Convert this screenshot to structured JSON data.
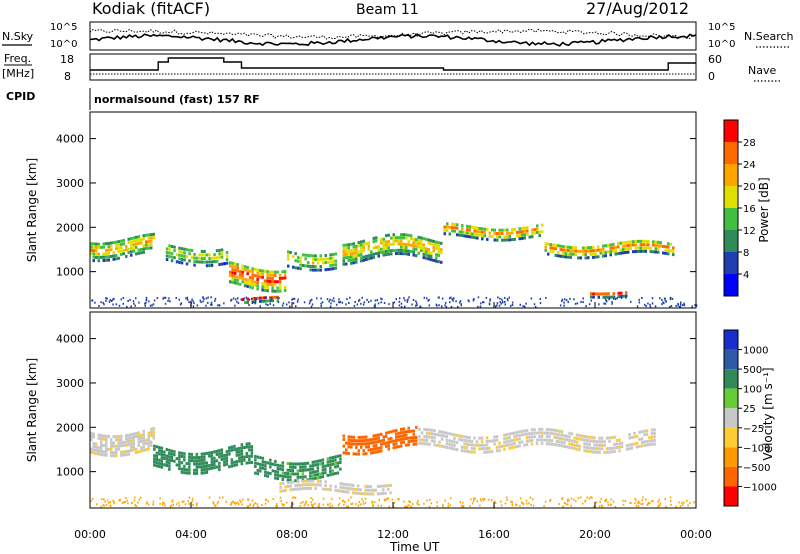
{
  "header": {
    "station": "Kodiak (fitACF)",
    "beam": "Beam 11",
    "date": "27/Aug/2012",
    "cpid_label": "CPID",
    "cpid_value": "normalsound (fast) 157 RF"
  },
  "aux_panels": {
    "nsky_label": "N.Sky",
    "nsearch_label": "N.Search",
    "nsky_ticks": [
      "10^5",
      "10^0"
    ],
    "freq_label_1": "Freq.",
    "freq_label_2": "[MHz]",
    "freq_ticks": [
      "18",
      "8"
    ],
    "nave_label": "Nave",
    "nave_ticks": [
      "60",
      "0"
    ]
  },
  "colors": {
    "power_scale": [
      "#0000ff",
      "#1f3fb0",
      "#2e8b57",
      "#40bf40",
      "#e0e000",
      "#ffa500",
      "#ff6a00",
      "#ff0000"
    ],
    "velocity_scale": [
      "#1a2ecc",
      "#2e5aa8",
      "#2e8b57",
      "#66cc33",
      "#c8c8c8",
      "#ffcc33",
      "#ff9900",
      "#ff6600",
      "#ff0000"
    ],
    "ground_scatter": "#c8c8c8"
  },
  "chart_data": [
    {
      "type": "heatmap",
      "title": "Power",
      "xlabel": "Time UT",
      "ylabel": "Slant Range [km]",
      "x_ticks": [
        "00:00",
        "04:00",
        "08:00",
        "12:00",
        "16:00",
        "20:00",
        "00:00"
      ],
      "y_ticks": [
        1000,
        2000,
        3000,
        4000
      ],
      "ylim": [
        180,
        4600
      ],
      "colorbar": {
        "label": "Power [dB]",
        "ticks": [
          "4",
          "8",
          "12",
          "16",
          "20",
          "24",
          "28"
        ]
      },
      "echo_regions": [
        {
          "t_start": 0.0,
          "t_end": 2.6,
          "r_center": 1550,
          "r_width": 450,
          "peak_db": 22
        },
        {
          "t_start": 3.0,
          "t_end": 5.5,
          "r_center": 1400,
          "r_width": 400,
          "peak_db": 18
        },
        {
          "t_start": 5.5,
          "t_end": 7.8,
          "r_center": 900,
          "r_width": 500,
          "peak_db": 30
        },
        {
          "t_start": 6.0,
          "t_end": 7.5,
          "r_center": 350,
          "r_width": 150,
          "peak_db": 28
        },
        {
          "t_start": 7.8,
          "t_end": 9.8,
          "r_center": 1300,
          "r_width": 400,
          "peak_db": 20
        },
        {
          "t_start": 10.0,
          "t_end": 14.0,
          "r_center": 1500,
          "r_width": 500,
          "peak_db": 22
        },
        {
          "t_start": 14.0,
          "t_end": 18.0,
          "r_center": 1900,
          "r_width": 300,
          "peak_db": 24
        },
        {
          "t_start": 18.0,
          "t_end": 23.2,
          "r_center": 1500,
          "r_width": 300,
          "peak_db": 24
        },
        {
          "t_start": 19.8,
          "t_end": 21.3,
          "r_center": 500,
          "r_width": 150,
          "peak_db": 26
        }
      ]
    },
    {
      "type": "heatmap",
      "title": "Velocity",
      "xlabel": "Time UT",
      "ylabel": "Slant Range [km]",
      "x_ticks": [
        "00:00",
        "04:00",
        "08:00",
        "12:00",
        "16:00",
        "20:00",
        "00:00"
      ],
      "y_ticks": [
        1000,
        2000,
        3000,
        4000
      ],
      "ylim": [
        180,
        4600
      ],
      "colorbar": {
        "label": "Velocity [m s⁻¹]",
        "ticks": [
          "1000",
          "500",
          "100",
          "25",
          "−25",
          "−100",
          "−500",
          "−1000"
        ]
      },
      "echo_regions": [
        {
          "t_start": 0.0,
          "t_end": 2.6,
          "r_center": 1700,
          "r_width": 500,
          "vel": 0
        },
        {
          "t_start": 2.5,
          "t_end": 6.5,
          "r_center": 1300,
          "r_width": 500,
          "vel": 200
        },
        {
          "t_start": 6.5,
          "t_end": 10.0,
          "r_center": 1100,
          "r_width": 450,
          "vel": 150
        },
        {
          "t_start": 10.0,
          "t_end": 13.0,
          "r_center": 1700,
          "r_width": 450,
          "vel": -300
        },
        {
          "t_start": 13.0,
          "t_end": 22.5,
          "r_center": 1700,
          "r_width": 400,
          "vel": 0
        },
        {
          "t_start": 7.5,
          "t_end": 12.0,
          "r_center": 650,
          "r_width": 250,
          "vel": 0
        }
      ]
    }
  ]
}
